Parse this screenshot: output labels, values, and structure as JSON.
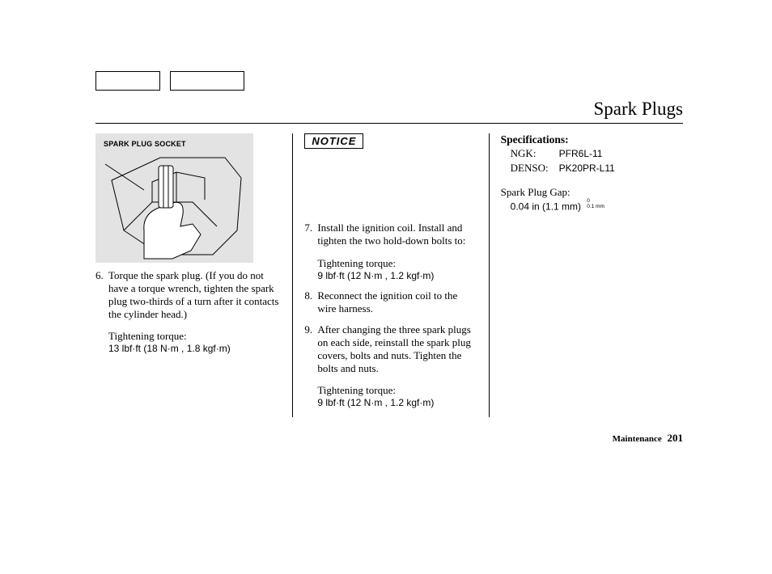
{
  "title": "Spark Plugs",
  "figure": {
    "label": "SPARK PLUG SOCKET"
  },
  "col1": {
    "step6": {
      "num": "6.",
      "text": "Torque the spark plug. (If you do not have a torque wrench, tighten the spark plug two-thirds of a turn after it contacts the cylinder head.)",
      "torque_label": "Tightening torque:",
      "torque_value": "13 lbf·ft (18 N·m , 1.8 kgf·m)"
    }
  },
  "col2": {
    "notice": "NOTICE",
    "step7": {
      "num": "7.",
      "text": "Install the ignition coil. Install and tighten the two hold-down bolts to:",
      "torque_label": "Tightening torque:",
      "torque_value": "9 lbf·ft (12 N·m , 1.2 kgf·m)"
    },
    "step8": {
      "num": "8.",
      "text": "Reconnect the ignition coil to the wire harness."
    },
    "step9": {
      "num": "9.",
      "text": "After changing the three spark plugs on each side, reinstall the spark plug covers, bolts and nuts. Tighten the bolts and nuts.",
      "torque_label": "Tightening torque:",
      "torque_value": "9 lbf·ft (12 N·m , 1.2 kgf·m)"
    }
  },
  "col3": {
    "spec_head": "Specifications:",
    "rows": [
      {
        "k": "NGK:",
        "v": "PFR6L-11"
      },
      {
        "k": "DENSO:",
        "v": "PK20PR-L11"
      }
    ],
    "gap_label": "Spark Plug Gap:",
    "gap_value": "0.04 in (1.1 mm)",
    "gap_tol_top": "0",
    "gap_tol_bot": "0.1 mm"
  },
  "footer": {
    "section": "Maintenance",
    "page": "201"
  }
}
